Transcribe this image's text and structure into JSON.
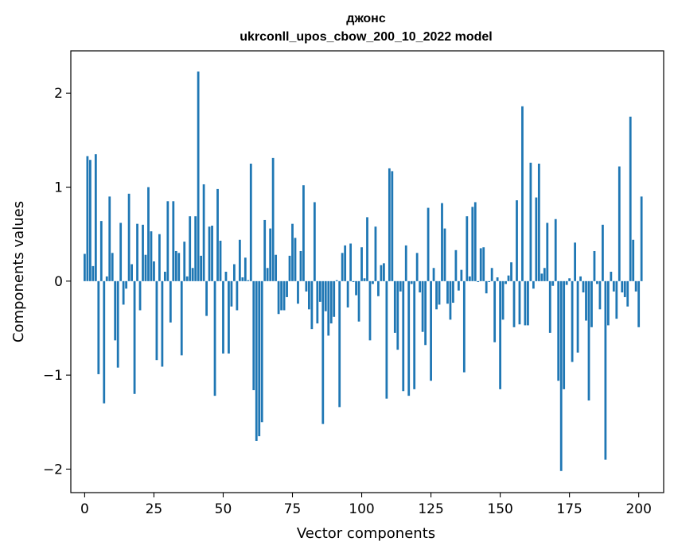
{
  "chart_data": {
    "type": "bar",
    "title_line1": "джонс",
    "title_line2": "ukrconll_upos_cbow_200_10_2022 model",
    "xlabel": "Vector components",
    "ylabel": "Components values",
    "xlim": [
      -5,
      209
    ],
    "ylim": [
      -2.25,
      2.45
    ],
    "xticks": [
      0,
      25,
      50,
      75,
      100,
      125,
      150,
      175,
      200
    ],
    "yticks": [
      -2,
      -1,
      0,
      1,
      2
    ],
    "ytick_labels": [
      "−2",
      "−1",
      "0",
      "1",
      "2"
    ],
    "grid": false,
    "bar_color": "#1f77b4",
    "values": [
      0.29,
      1.33,
      1.29,
      0.16,
      1.35,
      -0.99,
      0.64,
      -1.3,
      0.05,
      0.9,
      0.3,
      -0.63,
      -0.92,
      0.62,
      -0.25,
      -0.08,
      0.93,
      0.18,
      -1.2,
      0.61,
      -0.31,
      0.6,
      0.28,
      1.0,
      0.53,
      0.21,
      -0.84,
      0.5,
      -0.91,
      0.1,
      0.85,
      -0.44,
      0.85,
      0.32,
      0.3,
      -0.79,
      0.42,
      0.05,
      0.69,
      0.14,
      0.69,
      2.23,
      0.27,
      1.03,
      -0.37,
      0.58,
      0.59,
      -1.22,
      0.98,
      0.43,
      -0.77,
      0.1,
      -0.77,
      -0.27,
      0.18,
      -0.31,
      0.44,
      0.04,
      0.25,
      0.01,
      1.25,
      -1.16,
      -1.7,
      -1.65,
      -1.5,
      0.65,
      0.14,
      0.56,
      1.31,
      0.28,
      -0.35,
      -0.31,
      -0.31,
      -0.17,
      0.27,
      0.61,
      0.46,
      -0.24,
      0.32,
      1.02,
      -0.11,
      -0.3,
      -0.51,
      0.84,
      -0.45,
      -0.22,
      -1.52,
      -0.32,
      -0.58,
      -0.45,
      -0.38,
      0.01,
      -1.34,
      0.3,
      0.38,
      -0.28,
      0.4,
      -0.01,
      -0.15,
      -0.43,
      0.36,
      0.03,
      0.68,
      -0.63,
      -0.03,
      0.58,
      -0.16,
      0.17,
      0.19,
      -1.25,
      1.2,
      1.17,
      -0.55,
      -0.73,
      -0.11,
      -1.17,
      0.38,
      -1.22,
      -0.03,
      -1.15,
      0.3,
      -0.12,
      -0.54,
      -0.68,
      0.78,
      -1.06,
      0.14,
      -0.3,
      -0.25,
      0.83,
      0.56,
      -0.24,
      -0.41,
      -0.23,
      0.33,
      -0.1,
      0.12,
      -0.97,
      0.69,
      0.05,
      0.79,
      0.84,
      -0.01,
      0.35,
      0.36,
      -0.13,
      -0.01,
      0.14,
      -0.65,
      0.04,
      -1.15,
      -0.41,
      -0.03,
      0.06,
      0.2,
      -0.49,
      0.86,
      -0.46,
      1.86,
      -0.47,
      -0.47,
      1.26,
      -0.08,
      0.89,
      1.25,
      0.08,
      0.14,
      0.62,
      -0.55,
      -0.05,
      0.66,
      -1.06,
      -2.02,
      -1.15,
      -0.04,
      0.03,
      -0.86,
      0.41,
      -0.76,
      0.05,
      -0.12,
      -0.42,
      -1.27,
      -0.49,
      0.32,
      -0.03,
      -0.3,
      0.6,
      -1.9,
      -0.47,
      0.1,
      -0.11,
      -0.4,
      1.22,
      -0.12,
      -0.17,
      -0.27,
      1.75,
      0.44,
      -0.11,
      -0.49,
      0.9
    ]
  }
}
